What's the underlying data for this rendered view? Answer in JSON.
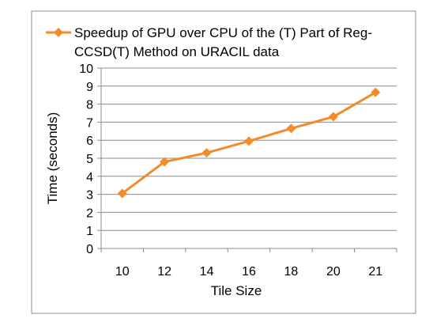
{
  "chart_data": {
    "type": "line",
    "title": "",
    "xlabel": "Tile Size",
    "ylabel": "Time (seconds)",
    "categories": [
      "10",
      "12",
      "14",
      "16",
      "18",
      "20",
      "21"
    ],
    "ylim": [
      0,
      10
    ],
    "yticks": [
      "0",
      "1",
      "2",
      "3",
      "4",
      "5",
      "6",
      "7",
      "8",
      "9",
      "10"
    ],
    "grid": true,
    "legend_position": "top",
    "series": [
      {
        "name": "Speedup of GPU over CPU of the (T) Part of Reg-CCSD(T) Method on URACIL data",
        "name_lines": [
          "Speedup of GPU over CPU of the (T) Part of Reg-",
          "CCSD(T) Method on URACIL data"
        ],
        "values": [
          3.05,
          4.8,
          5.3,
          5.95,
          6.65,
          7.3,
          8.65
        ],
        "color": "#F28C28",
        "marker": "diamond"
      }
    ]
  }
}
